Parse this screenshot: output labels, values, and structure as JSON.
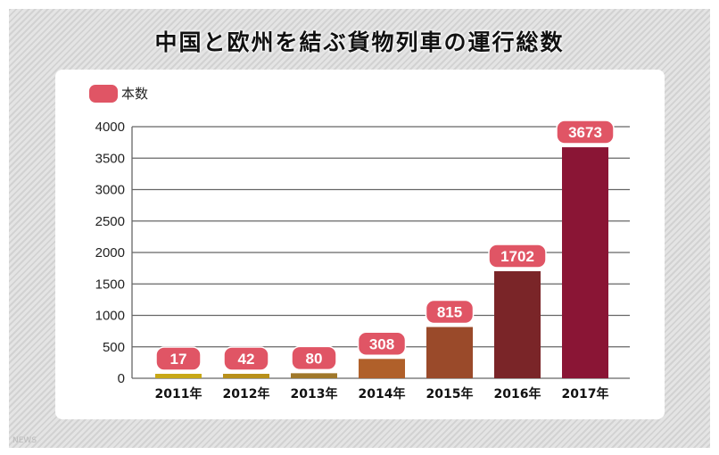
{
  "chart_data": {
    "type": "bar",
    "title": "中国と欧州を結ぶ貨物列車の運行総数",
    "legend": [
      {
        "label": "本数",
        "color": "#e05565"
      }
    ],
    "legend_position": "top-left",
    "categories": [
      "2011年",
      "2012年",
      "2013年",
      "2014年",
      "2015年",
      "2016年",
      "2017年"
    ],
    "values": [
      17,
      42,
      80,
      308,
      815,
      1702,
      3673
    ],
    "colors": [
      "#c8a817",
      "#b8901a",
      "#a0782a",
      "#b0602a",
      "#9a4a2a",
      "#7a2528",
      "#8a1535"
    ],
    "label_color": "#e05565",
    "ylim": [
      0,
      4000
    ],
    "yticks": [
      0,
      500,
      1000,
      1500,
      2000,
      2500,
      3000,
      3500,
      4000
    ],
    "grid": true,
    "xlabel": "",
    "ylabel": ""
  },
  "watermark": "NEWS"
}
